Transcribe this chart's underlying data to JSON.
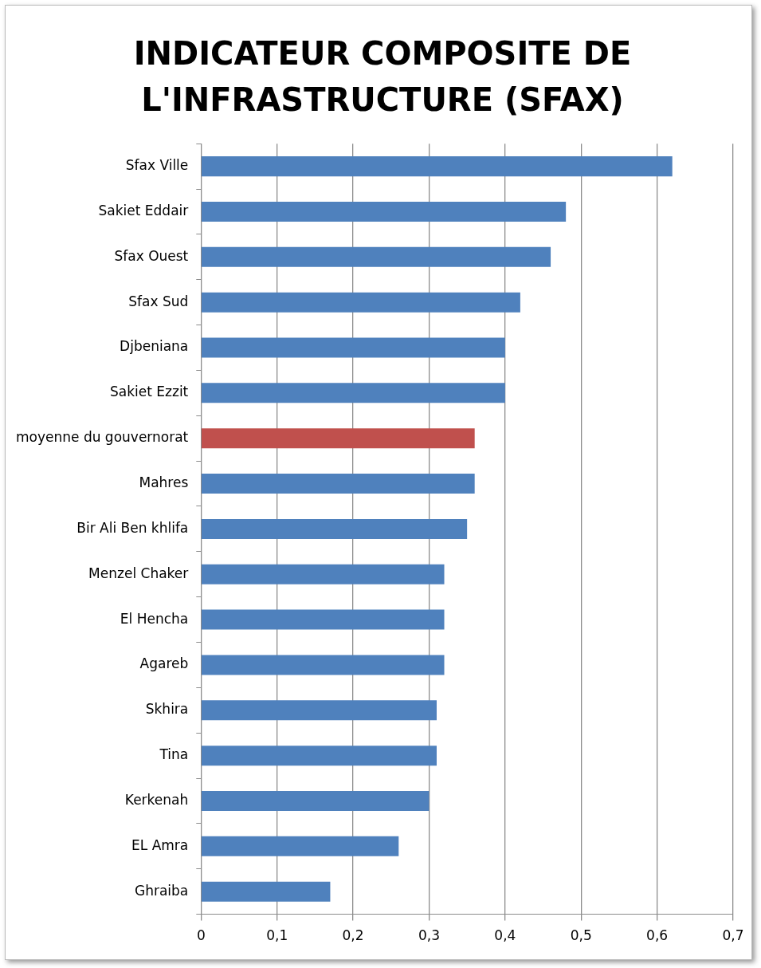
{
  "chart_data": {
    "type": "bar",
    "orientation": "horizontal",
    "title": "INDICATEUR  COMPOSITE  DE L'INFRASTRUCTURE (SFAX)",
    "categories": [
      "Sfax Ville",
      "Sakiet Eddair",
      "Sfax Ouest",
      "Sfax Sud",
      "Djbeniana",
      "Sakiet Ezzit",
      "moyenne du gouvernorat",
      "Mahres",
      "Bir Ali Ben khlifa",
      "Menzel Chaker",
      "El Hencha",
      "Agareb",
      "Skhira",
      "Tina",
      "Kerkenah",
      "EL Amra",
      "Ghraiba"
    ],
    "values": [
      0.62,
      0.48,
      0.46,
      0.42,
      0.4,
      0.4,
      0.36,
      0.36,
      0.35,
      0.32,
      0.32,
      0.32,
      0.31,
      0.31,
      0.3,
      0.26,
      0.17
    ],
    "colors": [
      "#4f81bd",
      "#4f81bd",
      "#4f81bd",
      "#4f81bd",
      "#4f81bd",
      "#4f81bd",
      "#c0504d",
      "#4f81bd",
      "#4f81bd",
      "#4f81bd",
      "#4f81bd",
      "#4f81bd",
      "#4f81bd",
      "#4f81bd",
      "#4f81bd",
      "#4f81bd",
      "#4f81bd"
    ],
    "xlim": [
      0,
      0.7
    ],
    "xticks": [
      0,
      {
        "value": 0.1,
        "label": "0,1"
      },
      {
        "value": 0.2,
        "label": "0,2"
      },
      {
        "value": 0.3,
        "label": "0,3"
      },
      {
        "value": 0.4,
        "label": "0,4"
      },
      {
        "value": 0.5,
        "label": "0,5"
      },
      {
        "value": 0.6,
        "label": "0,6"
      },
      {
        "value": 0.7,
        "label": "0,7"
      }
    ],
    "grid": "x"
  }
}
